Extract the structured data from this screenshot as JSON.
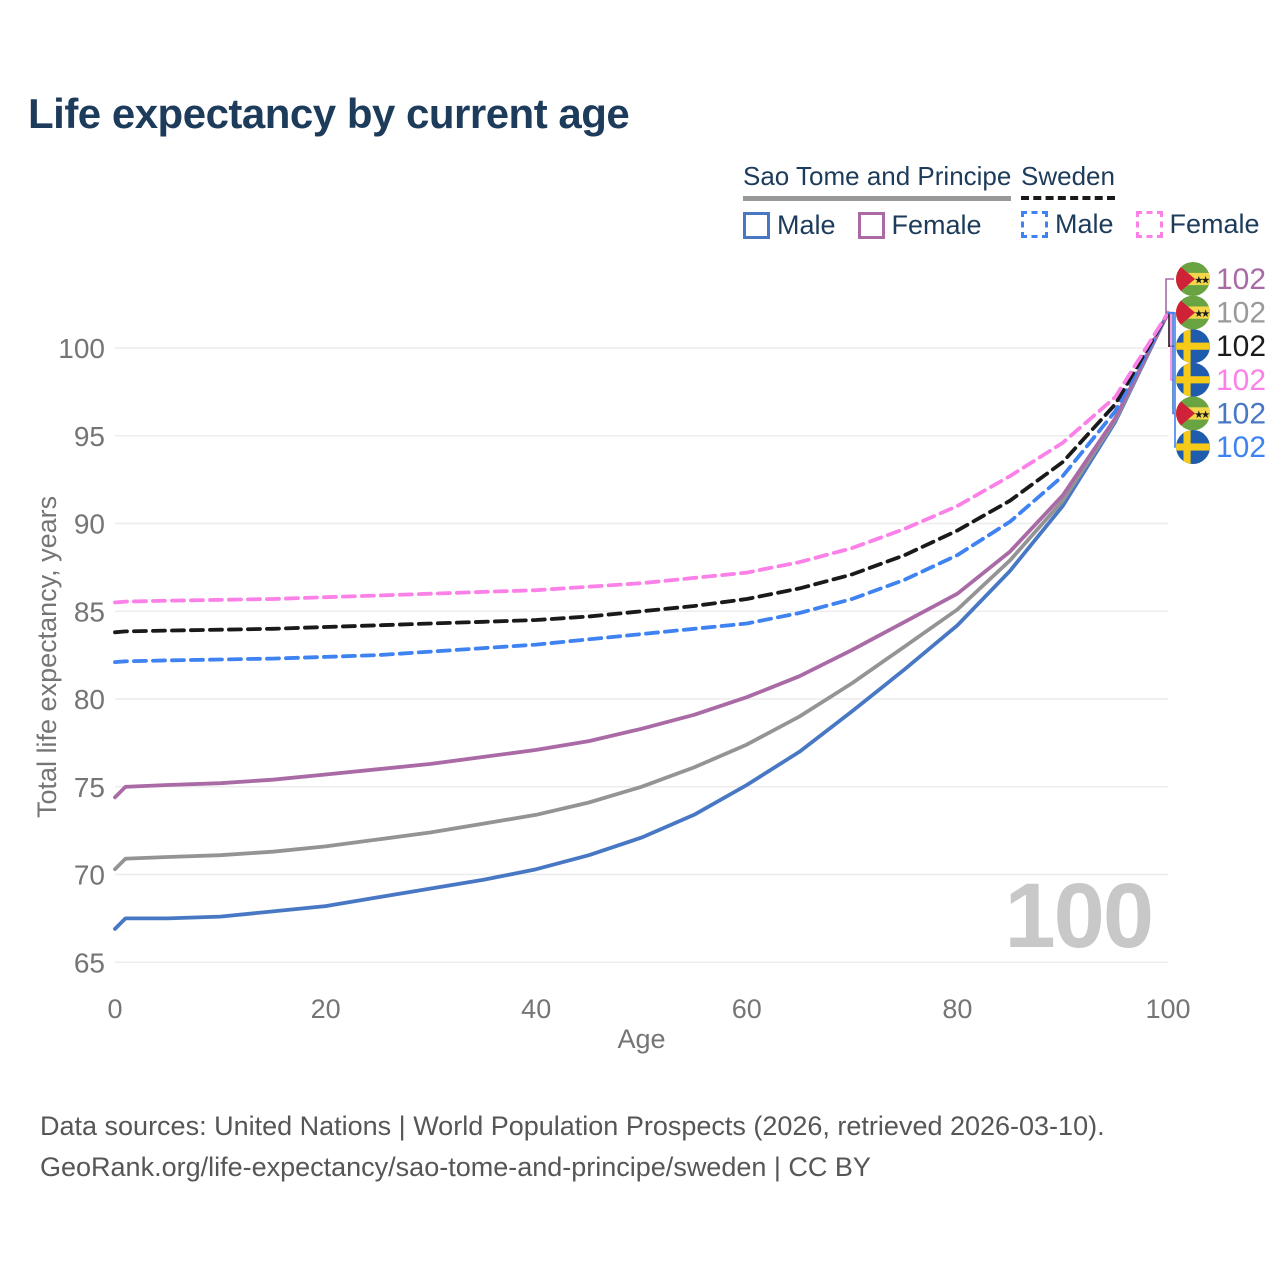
{
  "title": "Life expectancy by current age",
  "legend": {
    "groups": [
      {
        "label": "Sao Tome and Principe",
        "line_style": "solid",
        "underline_color": "#999999",
        "items": [
          {
            "label": "Male",
            "color": "#4878c4",
            "dashed": false
          },
          {
            "label": "Female",
            "color": "#a96aa6",
            "dashed": false
          }
        ]
      },
      {
        "label": "Sweden",
        "line_style": "dashed",
        "underline_color": "#1a1a1a",
        "items": [
          {
            "label": "Male",
            "color": "#3f82f2",
            "dashed": true
          },
          {
            "label": "Female",
            "color": "#fb80e8",
            "dashed": true
          }
        ]
      }
    ]
  },
  "chart_data": {
    "type": "line",
    "title": "Life expectancy by current age",
    "xlabel": "Age",
    "ylabel": "Total life expectancy, years",
    "xticks": [
      0,
      20,
      40,
      60,
      80,
      100
    ],
    "yticks": [
      65,
      70,
      75,
      80,
      85,
      90,
      95,
      100
    ],
    "xlim": [
      0,
      100
    ],
    "ylim": [
      63.5,
      103
    ],
    "grid": true,
    "legend_position": "top-right",
    "x": [
      0,
      1,
      5,
      10,
      15,
      20,
      25,
      30,
      35,
      40,
      45,
      50,
      55,
      60,
      65,
      70,
      75,
      80,
      85,
      90,
      95,
      100
    ],
    "series": [
      {
        "id": "stp_male",
        "name": "Sao Tome and Principe Male",
        "country": "Sao Tome and Principe",
        "sex": "Male",
        "color": "#4878c4",
        "dashed": false,
        "values": [
          66.9,
          67.5,
          67.5,
          67.6,
          67.9,
          68.2,
          68.7,
          69.2,
          69.7,
          70.3,
          71.1,
          72.1,
          73.4,
          75.1,
          77.0,
          79.3,
          81.7,
          84.2,
          87.3,
          91.0,
          95.8,
          102
        ]
      },
      {
        "id": "stp_total",
        "name": "Sao Tome and Principe Total",
        "country": "Sao Tome and Principe",
        "sex": "Both",
        "color": "#949494",
        "dashed": false,
        "values": [
          70.3,
          70.9,
          71.0,
          71.1,
          71.3,
          71.6,
          72.0,
          72.4,
          72.9,
          73.4,
          74.1,
          75.0,
          76.1,
          77.4,
          79.0,
          80.9,
          83.0,
          85.1,
          87.9,
          91.3,
          95.9,
          102
        ]
      },
      {
        "id": "stp_female",
        "name": "Sao Tome and Principe Female",
        "country": "Sao Tome and Principe",
        "sex": "Female",
        "color": "#a96aa6",
        "dashed": false,
        "values": [
          74.4,
          75.0,
          75.1,
          75.2,
          75.4,
          75.7,
          76.0,
          76.3,
          76.7,
          77.1,
          77.6,
          78.3,
          79.1,
          80.1,
          81.3,
          82.8,
          84.4,
          86.0,
          88.4,
          91.6,
          96.0,
          102
        ]
      },
      {
        "id": "swe_male",
        "name": "Sweden Male",
        "country": "Sweden",
        "sex": "Male",
        "color": "#3f82f2",
        "dashed": true,
        "values": [
          82.1,
          82.15,
          82.2,
          82.25,
          82.3,
          82.4,
          82.5,
          82.7,
          82.9,
          83.1,
          83.4,
          83.7,
          84.0,
          84.3,
          84.9,
          85.7,
          86.8,
          88.2,
          90.1,
          92.7,
          96.4,
          102
        ]
      },
      {
        "id": "swe_total",
        "name": "Sweden Total",
        "country": "Sweden",
        "sex": "Both",
        "color": "#1a1a1a",
        "dashed": true,
        "values": [
          83.8,
          83.85,
          83.9,
          83.95,
          84.0,
          84.1,
          84.2,
          84.3,
          84.4,
          84.5,
          84.7,
          85.0,
          85.3,
          85.7,
          86.3,
          87.1,
          88.2,
          89.6,
          91.3,
          93.5,
          96.8,
          102
        ]
      },
      {
        "id": "swe_female",
        "name": "Sweden Female",
        "country": "Sweden",
        "sex": "Female",
        "color": "#fb80e8",
        "dashed": true,
        "values": [
          85.5,
          85.55,
          85.6,
          85.65,
          85.7,
          85.8,
          85.9,
          86.0,
          86.1,
          86.2,
          86.4,
          86.6,
          86.9,
          87.2,
          87.8,
          88.6,
          89.7,
          91.0,
          92.7,
          94.6,
          97.2,
          102
        ]
      }
    ]
  },
  "end_labels": [
    {
      "flag": "sao-tome-and-principe",
      "series": "stp_female",
      "value": "102",
      "color": "#a96aa6"
    },
    {
      "flag": "sao-tome-and-principe",
      "series": "stp_total",
      "value": "102",
      "color": "#9a9a9a"
    },
    {
      "flag": "sweden",
      "series": "swe_total",
      "value": "102",
      "color": "#1a1a1a"
    },
    {
      "flag": "sweden",
      "series": "swe_female",
      "value": "102",
      "color": "#fb80e8"
    },
    {
      "flag": "sao-tome-and-principe",
      "series": "stp_male",
      "value": "102",
      "color": "#4878c4"
    },
    {
      "flag": "sweden",
      "series": "swe_male",
      "value": "102",
      "color": "#3f82f2"
    }
  ],
  "watermark": "100",
  "footer": {
    "line1": "Data sources: United Nations | World Population Prospects (2026, retrieved 2026-03-10).",
    "line2": "GeoRank.org/life-expectancy/sao-tome-and-principe/sweden | CC BY"
  },
  "colors": {
    "title_text": "#1d3b5a",
    "axis_text": "#757575",
    "gridline": "#ececec",
    "watermark": "#c8c8c8",
    "footer_text": "#565656"
  }
}
